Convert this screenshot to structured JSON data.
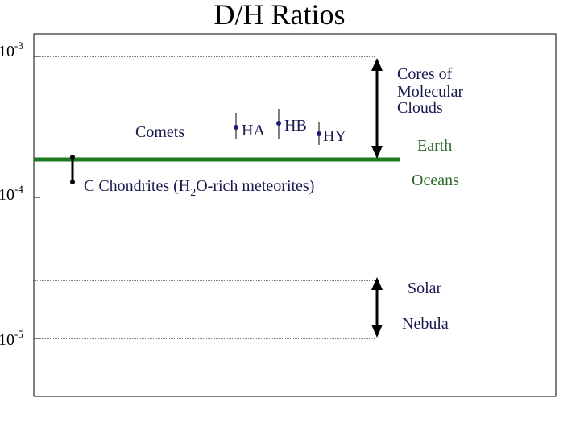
{
  "title": "D/H Ratios",
  "axis_labels": [
    {
      "base": "10",
      "exp": "-3"
    },
    {
      "base": "10",
      "exp": "-4"
    },
    {
      "base": "10",
      "exp": "-5"
    }
  ],
  "comets": {
    "label": "Comets",
    "points": [
      "HA",
      "HB",
      "HY"
    ]
  },
  "chondrites": {
    "before": "C Chondrites (H",
    "sub": "2",
    "after": "O-rich meteorites)"
  },
  "clouds": [
    "Cores of",
    "Molecular",
    "Clouds"
  ],
  "earth": [
    "Earth",
    "Oceans"
  ],
  "solar": [
    "Solar",
    "Nebula"
  ]
}
